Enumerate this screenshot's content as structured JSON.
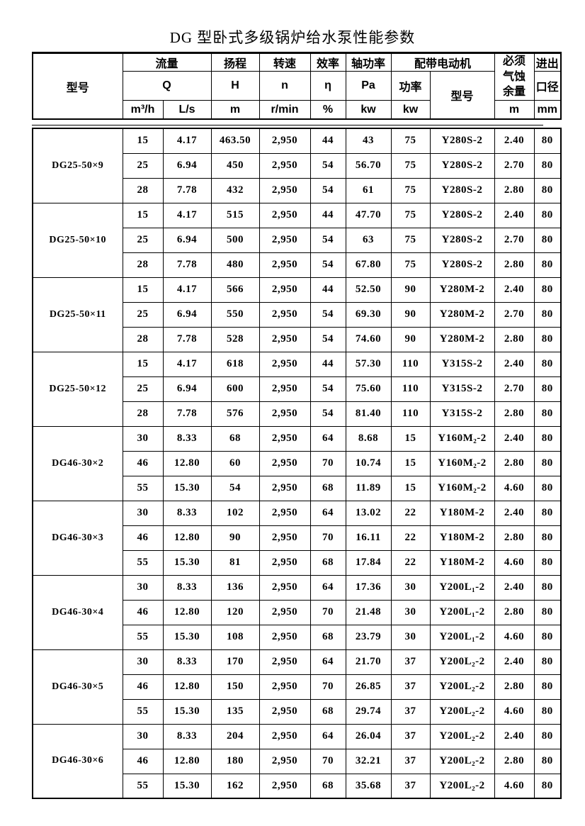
{
  "title": "DG 型卧式多级锅炉给水泵性能参数",
  "header": {
    "model": "型号",
    "flow": "流量",
    "flow_symbol": "Q",
    "flow_unit_m3h": "m³/h",
    "flow_unit_ls": "L/s",
    "head": "扬程",
    "head_symbol": "H",
    "head_unit": "m",
    "speed": "转速",
    "speed_symbol": "n",
    "speed_unit": "r/min",
    "efficiency": "效率",
    "efficiency_symbol": "η",
    "efficiency_unit": "%",
    "shaft_power": "轴功率",
    "shaft_power_symbol": "Pa",
    "shaft_power_unit": "kw",
    "motor": "配带电动机",
    "motor_power": "功率",
    "motor_power_unit": "kw",
    "motor_model": "型号",
    "npsh": "必须气蚀余量",
    "npsh_unit": "m",
    "port_line1": "进出",
    "port_line2": "口径",
    "port_unit": "mm"
  },
  "groups": [
    {
      "model": "DG25-50×9",
      "rows": [
        [
          "15",
          "4.17",
          "463.50",
          "2,950",
          "44",
          "43",
          "75",
          "Y280S-2",
          "2.40",
          "80"
        ],
        [
          "25",
          "6.94",
          "450",
          "2,950",
          "54",
          "56.70",
          "75",
          "Y280S-2",
          "2.70",
          "80"
        ],
        [
          "28",
          "7.78",
          "432",
          "2,950",
          "54",
          "61",
          "75",
          "Y280S-2",
          "2.80",
          "80"
        ]
      ]
    },
    {
      "model": "DG25-50×10",
      "rows": [
        [
          "15",
          "4.17",
          "515",
          "2,950",
          "44",
          "47.70",
          "75",
          "Y280S-2",
          "2.40",
          "80"
        ],
        [
          "25",
          "6.94",
          "500",
          "2,950",
          "54",
          "63",
          "75",
          "Y280S-2",
          "2.70",
          "80"
        ],
        [
          "28",
          "7.78",
          "480",
          "2,950",
          "54",
          "67.80",
          "75",
          "Y280S-2",
          "2.80",
          "80"
        ]
      ]
    },
    {
      "model": "DG25-50×11",
      "rows": [
        [
          "15",
          "4.17",
          "566",
          "2,950",
          "44",
          "52.50",
          "90",
          "Y280M-2",
          "2.40",
          "80"
        ],
        [
          "25",
          "6.94",
          "550",
          "2,950",
          "54",
          "69.30",
          "90",
          "Y280M-2",
          "2.70",
          "80"
        ],
        [
          "28",
          "7.78",
          "528",
          "2,950",
          "54",
          "74.60",
          "90",
          "Y280M-2",
          "2.80",
          "80"
        ]
      ]
    },
    {
      "model": "DG25-50×12",
      "rows": [
        [
          "15",
          "4.17",
          "618",
          "2,950",
          "44",
          "57.30",
          "110",
          "Y315S-2",
          "2.40",
          "80"
        ],
        [
          "25",
          "6.94",
          "600",
          "2,950",
          "54",
          "75.60",
          "110",
          "Y315S-2",
          "2.70",
          "80"
        ],
        [
          "28",
          "7.78",
          "576",
          "2,950",
          "54",
          "81.40",
          "110",
          "Y315S-2",
          "2.80",
          "80"
        ]
      ]
    },
    {
      "model": "DG46-30×2",
      "rows": [
        [
          "30",
          "8.33",
          "68",
          "2,950",
          "64",
          "8.68",
          "15",
          "Y160M₂-2",
          "2.40",
          "80"
        ],
        [
          "46",
          "12.80",
          "60",
          "2,950",
          "70",
          "10.74",
          "15",
          "Y160M₂-2",
          "2.80",
          "80"
        ],
        [
          "55",
          "15.30",
          "54",
          "2,950",
          "68",
          "11.89",
          "15",
          "Y160M₂-2",
          "4.60",
          "80"
        ]
      ]
    },
    {
      "model": "DG46-30×3",
      "rows": [
        [
          "30",
          "8.33",
          "102",
          "2,950",
          "64",
          "13.02",
          "22",
          "Y180M-2",
          "2.40",
          "80"
        ],
        [
          "46",
          "12.80",
          "90",
          "2,950",
          "70",
          "16.11",
          "22",
          "Y180M-2",
          "2.80",
          "80"
        ],
        [
          "55",
          "15.30",
          "81",
          "2,950",
          "68",
          "17.84",
          "22",
          "Y180M-2",
          "4.60",
          "80"
        ]
      ]
    },
    {
      "model": "DG46-30×4",
      "rows": [
        [
          "30",
          "8.33",
          "136",
          "2,950",
          "64",
          "17.36",
          "30",
          "Y200L₁-2",
          "2.40",
          "80"
        ],
        [
          "46",
          "12.80",
          "120",
          "2,950",
          "70",
          "21.48",
          "30",
          "Y200L₁-2",
          "2.80",
          "80"
        ],
        [
          "55",
          "15.30",
          "108",
          "2,950",
          "68",
          "23.79",
          "30",
          "Y200L₁-2",
          "4.60",
          "80"
        ]
      ]
    },
    {
      "model": "DG46-30×5",
      "rows": [
        [
          "30",
          "8.33",
          "170",
          "2,950",
          "64",
          "21.70",
          "37",
          "Y200L₂-2",
          "2.40",
          "80"
        ],
        [
          "46",
          "12.80",
          "150",
          "2,950",
          "70",
          "26.85",
          "37",
          "Y200L₂-2",
          "2.80",
          "80"
        ],
        [
          "55",
          "15.30",
          "135",
          "2,950",
          "68",
          "29.74",
          "37",
          "Y200L₂-2",
          "4.60",
          "80"
        ]
      ]
    },
    {
      "model": "DG46-30×6",
      "rows": [
        [
          "30",
          "8.33",
          "204",
          "2,950",
          "64",
          "26.04",
          "37",
          "Y200L₂-2",
          "2.40",
          "80"
        ],
        [
          "46",
          "12.80",
          "180",
          "2,950",
          "70",
          "32.21",
          "37",
          "Y200L₂-2",
          "2.80",
          "80"
        ],
        [
          "55",
          "15.30",
          "162",
          "2,950",
          "68",
          "35.68",
          "37",
          "Y200L₂-2",
          "4.60",
          "80"
        ]
      ]
    }
  ]
}
